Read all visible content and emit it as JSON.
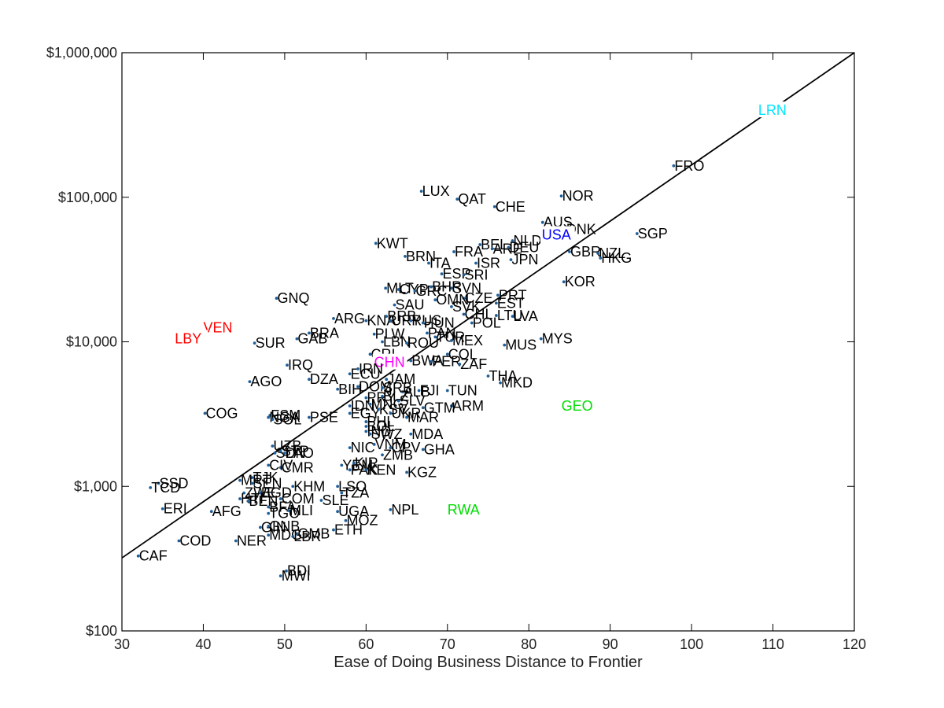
{
  "chart_data": {
    "type": "scatter",
    "title": "",
    "xlabel": "Ease of Doing Business Distance to Frontier",
    "ylabel": "",
    "xlim": [
      30,
      120
    ],
    "ylim": [
      100,
      1000000
    ],
    "y_scale": "log",
    "grid": false,
    "legend": "none",
    "x_ticks": [
      30,
      40,
      50,
      60,
      70,
      80,
      90,
      100,
      110,
      120
    ],
    "x_tick_labels": [
      "30",
      "40",
      "50",
      "60",
      "70",
      "80",
      "90",
      "100",
      "110",
      "120"
    ],
    "y_ticks": [
      100,
      1000,
      10000,
      100000,
      1000000
    ],
    "y_tick_labels": [
      "$100",
      "$1,000",
      "$10,000",
      "$100,000",
      "$1,000,000"
    ],
    "fit_line": {
      "x": [
        30,
        120
      ],
      "y": [
        320,
        1000000
      ],
      "color": "#000000"
    },
    "colors": {
      "default_label": "#000000",
      "marker": "#1f5f99",
      "red": "#ff0000",
      "magenta": "#ff00ff",
      "blue": "#0000ff",
      "green": "#00dd00",
      "cyan": "#00e5ff"
    },
    "points": [
      {
        "label": "LUX",
        "x": 66.8,
        "y": 110000
      },
      {
        "label": "QAT",
        "x": 71.2,
        "y": 97000
      },
      {
        "label": "CHE",
        "x": 75.8,
        "y": 86000
      },
      {
        "label": "NOR",
        "x": 84.0,
        "y": 102000
      },
      {
        "label": "AUS",
        "x": 81.7,
        "y": 67000
      },
      {
        "label": "DNK",
        "x": 84.5,
        "y": 60000
      },
      {
        "label": "SGP",
        "x": 93.3,
        "y": 56000
      },
      {
        "label": "KWT",
        "x": 61.2,
        "y": 48000
      },
      {
        "label": "NLD",
        "x": 78.0,
        "y": 50000
      },
      {
        "label": "BEL",
        "x": 74.0,
        "y": 47000
      },
      {
        "label": "ARE",
        "x": 75.5,
        "y": 44000
      },
      {
        "label": "DEU",
        "x": 77.5,
        "y": 45000
      },
      {
        "label": "FRA",
        "x": 70.8,
        "y": 42000
      },
      {
        "label": "GBR",
        "x": 85.0,
        "y": 42000
      },
      {
        "label": "NZL",
        "x": 88.5,
        "y": 41000
      },
      {
        "label": "HKG",
        "x": 88.8,
        "y": 38000
      },
      {
        "label": "BRN",
        "x": 64.8,
        "y": 39000
      },
      {
        "label": "ITA",
        "x": 67.7,
        "y": 35000
      },
      {
        "label": "ISR",
        "x": 73.5,
        "y": 35000
      },
      {
        "label": "JPN",
        "x": 77.8,
        "y": 37000
      },
      {
        "label": "ESP",
        "x": 69.3,
        "y": 29500
      },
      {
        "label": "SRI",
        "x": 72.0,
        "y": 29000
      },
      {
        "label": "KOR",
        "x": 84.3,
        "y": 26000
      },
      {
        "label": "MLT",
        "x": 62.4,
        "y": 23500
      },
      {
        "label": "CYP",
        "x": 64.0,
        "y": 23000
      },
      {
        "label": "GRC",
        "x": 66.0,
        "y": 22500
      },
      {
        "label": "SVN",
        "x": 70.5,
        "y": 23500
      },
      {
        "label": "BHR",
        "x": 68.0,
        "y": 24000
      },
      {
        "label": "PRT",
        "x": 76.2,
        "y": 21000
      },
      {
        "label": "CZE",
        "x": 72.0,
        "y": 20000
      },
      {
        "label": "OMN",
        "x": 68.5,
        "y": 19500
      },
      {
        "label": "SVK",
        "x": 70.5,
        "y": 17500
      },
      {
        "label": "EST",
        "x": 76.0,
        "y": 18500
      },
      {
        "label": "GNQ",
        "x": 49.0,
        "y": 20000
      },
      {
        "label": "SAU",
        "x": 63.5,
        "y": 18000
      },
      {
        "label": "CHL",
        "x": 72.0,
        "y": 15500
      },
      {
        "label": "LTU",
        "x": 76.0,
        "y": 15200
      },
      {
        "label": "LVA",
        "x": 78.0,
        "y": 15000
      },
      {
        "label": "ARG",
        "x": 56.0,
        "y": 14500
      },
      {
        "label": "KNA",
        "x": 60.0,
        "y": 14000
      },
      {
        "label": "BRB",
        "x": 62.5,
        "y": 15000
      },
      {
        "label": "URY",
        "x": 63.0,
        "y": 14000
      },
      {
        "label": "RUS",
        "x": 65.5,
        "y": 14000
      },
      {
        "label": "HUN",
        "x": 67.0,
        "y": 13500
      },
      {
        "label": "POL",
        "x": 73.0,
        "y": 13500
      },
      {
        "label": "BRA",
        "x": 53.0,
        "y": 11500
      },
      {
        "label": "GAB",
        "x": 51.5,
        "y": 10500
      },
      {
        "label": "SUR",
        "x": 46.3,
        "y": 9800
      },
      {
        "label": "PLW",
        "x": 61.0,
        "y": 11300
      },
      {
        "label": "PAN",
        "x": 67.5,
        "y": 11500
      },
      {
        "label": "TUR",
        "x": 68.5,
        "y": 10800
      },
      {
        "label": "MEX",
        "x": 70.5,
        "y": 10200
      },
      {
        "label": "MYS",
        "x": 81.5,
        "y": 10500
      },
      {
        "label": "MUS",
        "x": 77.0,
        "y": 9500
      },
      {
        "label": "LBN",
        "x": 62.0,
        "y": 10000
      },
      {
        "label": "ROU",
        "x": 65.0,
        "y": 9800
      },
      {
        "label": "VEN",
        "x": 40.0,
        "y": 12500,
        "color": "red"
      },
      {
        "label": "LBY",
        "x": 36.5,
        "y": 10500,
        "color": "red"
      },
      {
        "label": "CRI",
        "x": 60.5,
        "y": 8200
      },
      {
        "label": "COL",
        "x": 70.0,
        "y": 8200
      },
      {
        "label": "CHN",
        "x": 61.0,
        "y": 7200,
        "color": "magenta"
      },
      {
        "label": "IRQ",
        "x": 50.3,
        "y": 6900
      },
      {
        "label": "ECU",
        "x": 58.0,
        "y": 6000
      },
      {
        "label": "IRN",
        "x": 59.0,
        "y": 6500
      },
      {
        "label": "BWA",
        "x": 65.5,
        "y": 7400
      },
      {
        "label": "PER",
        "x": 68.0,
        "y": 7300
      },
      {
        "label": "ZAF",
        "x": 71.5,
        "y": 7000
      },
      {
        "label": "THA",
        "x": 75.0,
        "y": 5800
      },
      {
        "label": "MKD",
        "x": 76.5,
        "y": 5200
      },
      {
        "label": "DZA",
        "x": 53.0,
        "y": 5500
      },
      {
        "label": "AGO",
        "x": 45.7,
        "y": 5300
      },
      {
        "label": "JAM",
        "x": 62.5,
        "y": 5500
      },
      {
        "label": "BIH",
        "x": 56.5,
        "y": 4700
      },
      {
        "label": "DOM",
        "x": 59.0,
        "y": 4900
      },
      {
        "label": "SRB",
        "x": 62.0,
        "y": 4800
      },
      {
        "label": "ALB",
        "x": 64.5,
        "y": 4500
      },
      {
        "label": "FJI",
        "x": 66.5,
        "y": 4600
      },
      {
        "label": "TUN",
        "x": 70.0,
        "y": 4600
      },
      {
        "label": "GEO",
        "x": 84.0,
        "y": 3600,
        "color": "green"
      },
      {
        "label": "ARM",
        "x": 70.5,
        "y": 3600
      },
      {
        "label": "PRY",
        "x": 60.0,
        "y": 4100
      },
      {
        "label": "BLZ",
        "x": 62.0,
        "y": 4200
      },
      {
        "label": "IDN",
        "x": 58.0,
        "y": 3600
      },
      {
        "label": "MNG",
        "x": 60.5,
        "y": 3700
      },
      {
        "label": "SLV",
        "x": 64.0,
        "y": 3900
      },
      {
        "label": "COG",
        "x": 40.2,
        "y": 3200
      },
      {
        "label": "FSM",
        "x": 48.2,
        "y": 3100
      },
      {
        "label": "NGA",
        "x": 48.0,
        "y": 3000
      },
      {
        "label": "SOL",
        "x": 48.5,
        "y": 2900
      },
      {
        "label": "PSE",
        "x": 53.0,
        "y": 3000
      },
      {
        "label": "EGY",
        "x": 58.0,
        "y": 3200
      },
      {
        "label": "KSV",
        "x": 61.5,
        "y": 3400
      },
      {
        "label": "UKR",
        "x": 63.0,
        "y": 3200
      },
      {
        "label": "MAR",
        "x": 65.0,
        "y": 3000
      },
      {
        "label": "GTM",
        "x": 67.0,
        "y": 3500
      },
      {
        "label": "PHL",
        "x": 60.0,
        "y": 2800
      },
      {
        "label": "BOL",
        "x": 60.0,
        "y": 2600
      },
      {
        "label": "IND",
        "x": 60.0,
        "y": 2400
      },
      {
        "label": "SWZ",
        "x": 60.5,
        "y": 2300
      },
      {
        "label": "MDA",
        "x": 65.5,
        "y": 2300
      },
      {
        "label": "UZB",
        "x": 48.5,
        "y": 1900
      },
      {
        "label": "SDN",
        "x": 48.8,
        "y": 1700
      },
      {
        "label": "STP",
        "x": 49.5,
        "y": 1750
      },
      {
        "label": "LAO",
        "x": 50.0,
        "y": 1700
      },
      {
        "label": "NIC",
        "x": 58.0,
        "y": 1850
      },
      {
        "label": "VNM",
        "x": 61.0,
        "y": 1950
      },
      {
        "label": "CPV",
        "x": 63.0,
        "y": 1850
      },
      {
        "label": "GHA",
        "x": 67.0,
        "y": 1800
      },
      {
        "label": "ZMB",
        "x": 62.0,
        "y": 1650
      },
      {
        "label": "CMR",
        "x": 49.5,
        "y": 1350
      },
      {
        "label": "CIV",
        "x": 48.0,
        "y": 1400
      },
      {
        "label": "YEM",
        "x": 57.0,
        "y": 1400
      },
      {
        "label": "KIR",
        "x": 58.5,
        "y": 1450
      },
      {
        "label": "PAK",
        "x": 58.0,
        "y": 1300
      },
      {
        "label": "KEN",
        "x": 60.0,
        "y": 1300
      },
      {
        "label": "KGZ",
        "x": 65.0,
        "y": 1250
      },
      {
        "label": "TJK",
        "x": 46.0,
        "y": 1150
      },
      {
        "label": "MRT",
        "x": 44.5,
        "y": 1100
      },
      {
        "label": "SEN",
        "x": 46.0,
        "y": 1050
      },
      {
        "label": "KHM",
        "x": 51.0,
        "y": 1000
      },
      {
        "label": "LSO",
        "x": 56.5,
        "y": 1000
      },
      {
        "label": "SSD",
        "x": 34.5,
        "y": 1050
      },
      {
        "label": "TCD",
        "x": 33.5,
        "y": 980
      },
      {
        "label": "ZWE",
        "x": 45.0,
        "y": 900
      },
      {
        "label": "BGD",
        "x": 47.0,
        "y": 900
      },
      {
        "label": "TZA",
        "x": 57.0,
        "y": 900
      },
      {
        "label": "HTI",
        "x": 44.5,
        "y": 820
      },
      {
        "label": "BEN",
        "x": 45.5,
        "y": 790
      },
      {
        "label": "COM",
        "x": 49.5,
        "y": 820
      },
      {
        "label": "SLE",
        "x": 54.5,
        "y": 800
      },
      {
        "label": "BFA",
        "x": 48.0,
        "y": 720
      },
      {
        "label": "MLI",
        "x": 50.5,
        "y": 680
      },
      {
        "label": "UGA",
        "x": 56.5,
        "y": 670
      },
      {
        "label": "NPL",
        "x": 63.0,
        "y": 690
      },
      {
        "label": "RWA",
        "x": 70.0,
        "y": 690,
        "color": "green"
      },
      {
        "label": "ERI",
        "x": 35.0,
        "y": 700
      },
      {
        "label": "AFG",
        "x": 41.0,
        "y": 670
      },
      {
        "label": "TGO",
        "x": 48.0,
        "y": 650
      },
      {
        "label": "MOZ",
        "x": 57.5,
        "y": 580
      },
      {
        "label": "GIN",
        "x": 47.0,
        "y": 520
      },
      {
        "label": "GNB",
        "x": 48.0,
        "y": 530
      },
      {
        "label": "ETH",
        "x": 56.0,
        "y": 500
      },
      {
        "label": "MDG",
        "x": 48.0,
        "y": 460
      },
      {
        "label": "GMB",
        "x": 51.5,
        "y": 470
      },
      {
        "label": "LBR",
        "x": 51.0,
        "y": 450
      },
      {
        "label": "COD",
        "x": 37.0,
        "y": 420
      },
      {
        "label": "NER",
        "x": 44.0,
        "y": 420
      },
      {
        "label": "CAF",
        "x": 32.0,
        "y": 330
      },
      {
        "label": "BDI",
        "x": 50.2,
        "y": 260
      },
      {
        "label": "MWI",
        "x": 49.5,
        "y": 240
      },
      {
        "label": "USA",
        "x": 81.6,
        "y": 55000,
        "color": "blue"
      },
      {
        "label": "FRO",
        "x": 97.8,
        "y": 165000
      },
      {
        "label": "LRN",
        "x": 108.2,
        "y": 400000,
        "color": "cyan"
      }
    ]
  }
}
